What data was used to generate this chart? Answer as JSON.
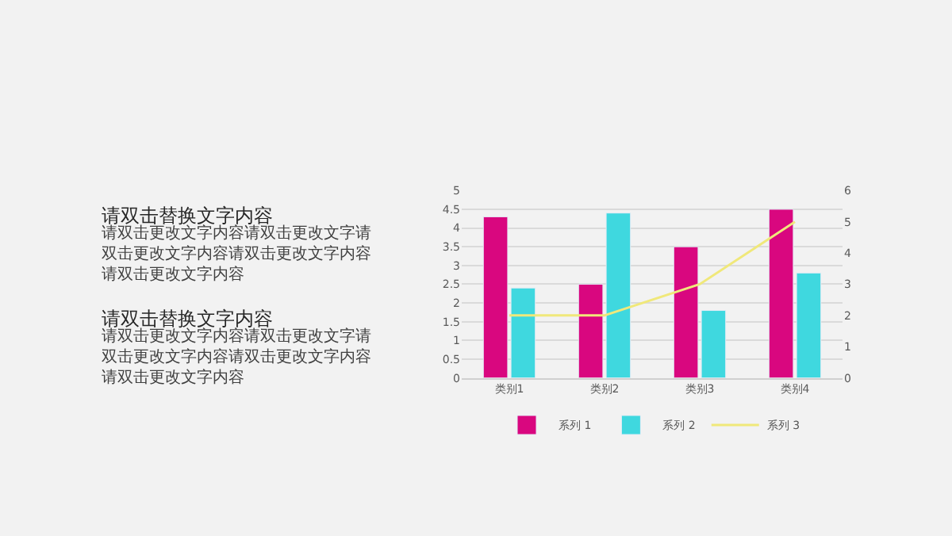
{
  "chart_data": {
    "type": "bar",
    "categories": [
      "类别1",
      "类别2",
      "类别3",
      "类别4"
    ],
    "series": [
      {
        "name": "系列 1",
        "color": "#d9077f",
        "values": [
          4.3,
          2.5,
          3.5,
          4.5
        ]
      },
      {
        "name": "系列 2",
        "color": "#3fd8df",
        "values": [
          2.4,
          4.4,
          1.8,
          2.8
        ]
      },
      {
        "name": "系列 3",
        "color": "#f0e87a",
        "type": "line",
        "axis": "y2",
        "values": [
          2,
          2,
          3,
          5
        ]
      }
    ],
    "ylim": [
      0,
      5
    ],
    "yticks": [
      0,
      0.5,
      1,
      1.5,
      2,
      2.5,
      3,
      3.5,
      4,
      4.5,
      5
    ],
    "y2lim": [
      0,
      6
    ],
    "y2ticks": [
      0,
      1,
      2,
      3,
      4,
      5,
      6
    ],
    "grid": "y",
    "legend": "bottom",
    "marker": "none",
    "line_style": "solid",
    "annotations": [
      "请双击替换文字内容",
      "请双击更改文字内容请双击更改文字请双击更改文字内容请双击更改文字内容请双击更改文字内容",
      "请双击替换文字内容",
      "请双击更改文字内容请双击更改文字请双击更改文字内容请双击更改文字内容请双击更改文字内容"
    ]
  }
}
